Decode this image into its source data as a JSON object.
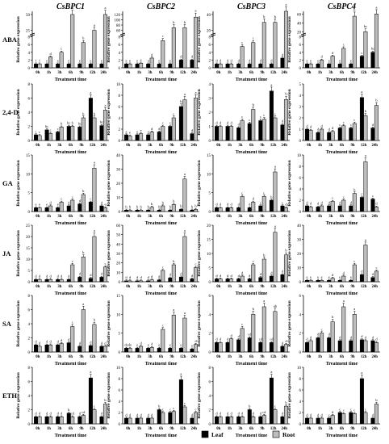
{
  "genes": [
    "CsBPC1",
    "CsBPC2",
    "CsBPC3",
    "CsBPC4"
  ],
  "treatments": [
    "ABA",
    "2,4-D",
    "GA",
    "JA",
    "SA",
    "ETH"
  ],
  "ylabel": "Relative gene expression",
  "xlabel": "Treatment time",
  "timepoints": [
    "0h",
    "1h",
    "3h",
    "6h",
    "9h",
    "12h",
    "24h"
  ],
  "legend": {
    "leaf": "Leaf",
    "root": "Root"
  },
  "colors": {
    "leaf": "#000000",
    "root": "#bdbdbd"
  },
  "chart_data": {
    "type": "bar",
    "layout": "grid of panels: rows = treatments, columns = genes",
    "categories": [
      "0h",
      "1h",
      "3h",
      "6h",
      "9h",
      "12h",
      "24h"
    ],
    "series_names": [
      "Leaf",
      "Root"
    ],
    "legend_position": "bottom",
    "panels": [
      {
        "treatment": "ABA",
        "gene": "CsBPC1",
        "ylim": [
          0,
          8
        ],
        "ticks": [
          0,
          2,
          4,
          6,
          8
        ],
        "break_ticks": [
          25,
          50
        ],
        "leaf": [
          1,
          1,
          1,
          1,
          1,
          1,
          1
        ],
        "root": [
          1,
          2.8,
          4,
          50,
          6.5,
          25,
          50
        ],
        "leaf_letters": [
          "f",
          "e",
          "e",
          "e",
          "e",
          "e",
          "e"
        ],
        "root_letters": [
          "f",
          "d",
          "c",
          "a",
          "b",
          "a",
          "a"
        ]
      },
      {
        "treatment": "ABA",
        "gene": "CsBPC2",
        "ylim": [
          0,
          8
        ],
        "ticks": [
          0,
          2,
          4,
          6,
          8
        ],
        "break_ticks": [
          60,
          80,
          100,
          120
        ],
        "leaf": [
          1,
          1,
          1,
          1,
          1,
          2,
          2
        ],
        "root": [
          1,
          1.2,
          2.5,
          7,
          70,
          70,
          110
        ],
        "leaf_letters": [
          "e",
          "e",
          "e",
          "e",
          "e",
          "d",
          "d"
        ],
        "root_letters": [
          "e",
          "e",
          "d",
          "c",
          "b",
          "b",
          "a"
        ]
      },
      {
        "treatment": "ABA",
        "gene": "CsBPC3",
        "ylim": [
          0,
          8
        ],
        "ticks": [
          0,
          2,
          4,
          6,
          8
        ],
        "break_ticks": [
          20,
          40
        ],
        "leaf": [
          1,
          1,
          1,
          1,
          1,
          1,
          2.5
        ],
        "root": [
          1,
          1,
          5.5,
          6.5,
          30,
          30,
          45
        ],
        "leaf_letters": [
          "d",
          "d",
          "d",
          "d",
          "d",
          "d",
          "d"
        ],
        "root_letters": [
          "d",
          "d",
          "c",
          "c",
          "b",
          "b",
          "a"
        ]
      },
      {
        "treatment": "ABA",
        "gene": "CsBPC4",
        "ylim": [
          0,
          8
        ],
        "ticks": [
          0,
          2,
          4,
          6,
          8
        ],
        "break_ticks": [
          20,
          40,
          60
        ],
        "leaf": [
          1,
          1,
          1,
          1,
          1,
          3,
          4
        ],
        "root": [
          1,
          2,
          3,
          5,
          55,
          20,
          60
        ],
        "leaf_letters": [
          "e",
          "e",
          "e",
          "e",
          "e",
          "c",
          "bc"
        ],
        "root_letters": [
          "e",
          "d",
          "d",
          "c",
          "b",
          "bc",
          "a"
        ]
      },
      {
        "treatment": "2,4-D",
        "gene": "CsBPC1",
        "ylim": [
          0,
          8
        ],
        "ticks": [
          0,
          2,
          4,
          6,
          8
        ],
        "leaf": [
          0.8,
          1.5,
          1.2,
          2,
          1.9,
          6,
          2.1
        ],
        "root": [
          0.7,
          1,
          1.9,
          2,
          3.2,
          3.2,
          4.3
        ],
        "leaf_letters": [
          "c",
          "bc",
          "c",
          "bc",
          "bc",
          "a",
          "bc"
        ],
        "root_letters": [
          "c",
          "c",
          "b",
          "b",
          "b",
          "b",
          "a"
        ]
      },
      {
        "treatment": "2,4-D",
        "gene": "CsBPC2",
        "ylim": [
          0,
          10
        ],
        "ticks": [
          0,
          2,
          4,
          6,
          8,
          10
        ],
        "leaf": [
          1,
          1,
          1,
          1.5,
          2.5,
          6,
          1.2
        ],
        "root": [
          0.8,
          1.2,
          1.5,
          2.5,
          4,
          7.2,
          7.5
        ],
        "leaf_letters": [
          "e",
          "e",
          "e",
          "d",
          "c",
          "b",
          "d"
        ],
        "root_letters": [
          "e",
          "e",
          "d",
          "c",
          "c",
          "a",
          "a"
        ]
      },
      {
        "treatment": "2,4-D",
        "gene": "CsBPC3",
        "ylim": [
          0,
          4
        ],
        "ticks": [
          0,
          1,
          2,
          3,
          4
        ],
        "leaf": [
          1,
          1,
          0.9,
          1.2,
          1.4,
          3.5,
          1.1
        ],
        "root": [
          1,
          1,
          1.4,
          2.2,
          1.5,
          1.6,
          2.9
        ],
        "leaf_letters": [
          "d",
          "d",
          "d",
          "c",
          "c",
          "a",
          "d"
        ],
        "root_letters": [
          "d",
          "d",
          "c",
          "b",
          "c",
          "c",
          "b"
        ]
      },
      {
        "treatment": "2,4-D",
        "gene": "CsBPC4",
        "ylim": [
          0,
          5
        ],
        "ticks": [
          0,
          1,
          2,
          3,
          4,
          5
        ],
        "leaf": [
          1,
          0.7,
          0.7,
          1.1,
          1.1,
          3.8,
          1.1
        ],
        "root": [
          0.9,
          1,
          0.8,
          1.3,
          1.5,
          2.2,
          3.1
        ],
        "leaf_letters": [
          "d",
          "d",
          "d",
          "c",
          "c",
          "a",
          "d"
        ],
        "root_letters": [
          "d",
          "d",
          "d",
          "c",
          "c",
          "b",
          "b"
        ]
      },
      {
        "treatment": "GA",
        "gene": "CsBPC1",
        "ylim": [
          0,
          15
        ],
        "ticks": [
          0,
          5,
          10,
          15
        ],
        "leaf": [
          1,
          1,
          1,
          1.5,
          2,
          2.5,
          1.5
        ],
        "root": [
          1,
          1.5,
          2.5,
          3,
          4.5,
          11.5,
          1
        ],
        "leaf_letters": [
          "e",
          "e",
          "e",
          "d",
          "d",
          "c",
          "d"
        ],
        "root_letters": [
          "e",
          "d",
          "c",
          "c",
          "b",
          "a",
          "e"
        ]
      },
      {
        "treatment": "GA",
        "gene": "CsBPC2",
        "ylim": [
          0,
          40
        ],
        "ticks": [
          0,
          10,
          20,
          30,
          40
        ],
        "leaf": [
          1,
          1,
          1,
          1,
          1,
          1.5,
          1
        ],
        "root": [
          1,
          1,
          3,
          4,
          5,
          23,
          1.5
        ],
        "leaf_letters": [
          "b",
          "b",
          "b",
          "b",
          "b",
          "b",
          "b"
        ],
        "root_letters": [
          "b",
          "b",
          "b",
          "b",
          "b",
          "a",
          "b"
        ]
      },
      {
        "treatment": "GA",
        "gene": "CsBPC3",
        "ylim": [
          0,
          15
        ],
        "ticks": [
          0,
          5,
          10,
          15
        ],
        "leaf": [
          1,
          1,
          1,
          1,
          1.5,
          3,
          1.5
        ],
        "root": [
          1,
          1,
          4,
          2.5,
          4,
          10.5,
          1
        ],
        "leaf_letters": [
          "d",
          "d",
          "d",
          "d",
          "c",
          "b",
          "c"
        ],
        "root_letters": [
          "d",
          "d",
          "c",
          "d",
          "c",
          "a",
          "d"
        ]
      },
      {
        "treatment": "GA",
        "gene": "CsBPC4",
        "ylim": [
          0,
          10
        ],
        "ticks": [
          0,
          2,
          4,
          6,
          8,
          10
        ],
        "leaf": [
          1,
          0.8,
          1,
          1,
          1,
          2.5,
          2.2
        ],
        "root": [
          0.8,
          1,
          1.8,
          2,
          3.2,
          8.8,
          0.8
        ],
        "leaf_letters": [
          "d",
          "d",
          "d",
          "d",
          "d",
          "c",
          "c"
        ],
        "root_letters": [
          "d",
          "d",
          "c",
          "c",
          "b",
          "a",
          "d"
        ]
      },
      {
        "treatment": "JA",
        "gene": "CsBPC1",
        "ylim": [
          0,
          25
        ],
        "ticks": [
          0,
          5,
          10,
          15,
          20,
          25
        ],
        "leaf": [
          1,
          1,
          1,
          1,
          2,
          1.5,
          2
        ],
        "root": [
          1,
          1,
          1,
          7.5,
          11,
          20,
          6.5
        ],
        "leaf_letters": [
          "d",
          "d",
          "d",
          "d",
          "d",
          "d",
          "d"
        ],
        "root_letters": [
          "d",
          "d",
          "d",
          "c",
          "b",
          "a",
          "c"
        ]
      },
      {
        "treatment": "JA",
        "gene": "CsBPC2",
        "ylim": [
          0,
          60
        ],
        "ticks": [
          0,
          10,
          20,
          30,
          40,
          50,
          60
        ],
        "leaf": [
          1,
          1,
          1,
          2,
          4,
          5,
          3
        ],
        "root": [
          1,
          1,
          2,
          12,
          18,
          48,
          15
        ],
        "leaf_letters": [
          "d",
          "d",
          "d",
          "d",
          "d",
          "d",
          "d"
        ],
        "root_letters": [
          "d",
          "d",
          "d",
          "c",
          "b",
          "a",
          "c"
        ]
      },
      {
        "treatment": "JA",
        "gene": "CsBPC3",
        "ylim": [
          0,
          20
        ],
        "ticks": [
          0,
          5,
          10,
          15,
          20
        ],
        "leaf": [
          1,
          1,
          1,
          1,
          1.5,
          2,
          2.5
        ],
        "root": [
          1,
          1,
          2,
          6,
          8,
          17.5,
          9.5
        ],
        "leaf_letters": [
          "d",
          "d",
          "d",
          "d",
          "d",
          "d",
          "d"
        ],
        "root_letters": [
          "d",
          "d",
          "d",
          "c",
          "b",
          "a",
          "b"
        ]
      },
      {
        "treatment": "JA",
        "gene": "CsBPC4",
        "ylim": [
          0,
          40
        ],
        "ticks": [
          0,
          10,
          20,
          30,
          40
        ],
        "leaf": [
          1,
          1,
          1,
          1,
          1,
          5,
          3
        ],
        "root": [
          1,
          1,
          2.5,
          4,
          12,
          26,
          7.5
        ],
        "leaf_letters": [
          "e",
          "e",
          "e",
          "e",
          "e",
          "d",
          "d"
        ],
        "root_letters": [
          "e",
          "e",
          "d",
          "d",
          "c",
          "a",
          "c"
        ]
      },
      {
        "treatment": "SA",
        "gene": "CsBPC1",
        "ylim": [
          0,
          8
        ],
        "ticks": [
          0,
          2,
          4,
          6,
          8
        ],
        "leaf": [
          1,
          1,
          1,
          1.3,
          0.8,
          0.9,
          0.8
        ],
        "root": [
          0.8,
          1,
          1.2,
          3.6,
          6,
          3.9,
          0.8
        ],
        "leaf_letters": [
          "d",
          "d",
          "d",
          "d",
          "d",
          "d",
          "d"
        ],
        "root_letters": [
          "d",
          "d",
          "d",
          "c",
          "a",
          "b",
          "d"
        ]
      },
      {
        "treatment": "SA",
        "gene": "CsBPC2",
        "ylim": [
          0,
          15
        ],
        "ticks": [
          0,
          5,
          10,
          15
        ],
        "leaf": [
          1,
          1,
          1,
          1,
          1,
          1,
          0.8
        ],
        "root": [
          1,
          1.5,
          1.2,
          6,
          9.8,
          9,
          2
        ],
        "leaf_letters": [
          "de",
          "e",
          "e",
          "e",
          "e",
          "e",
          "e"
        ],
        "root_letters": [
          "de",
          "d",
          "d",
          "c",
          "a",
          "a",
          "d"
        ]
      },
      {
        "treatment": "SA",
        "gene": "CsBPC3",
        "ylim": [
          0,
          6
        ],
        "ticks": [
          0,
          2,
          4,
          6
        ],
        "leaf": [
          1,
          1,
          1.3,
          1.5,
          1,
          1,
          0.6
        ],
        "root": [
          1,
          1.4,
          2.5,
          4,
          4.8,
          4.3,
          0.8
        ],
        "leaf_letters": [
          "d",
          "d",
          "d",
          "cd",
          "cd",
          "cd",
          "d"
        ],
        "root_letters": [
          "d",
          "d",
          "c",
          "b",
          "a",
          "ab",
          "d"
        ]
      },
      {
        "treatment": "SA",
        "gene": "CsBPC4",
        "ylim": [
          0,
          6
        ],
        "ticks": [
          0,
          2,
          4,
          6
        ],
        "leaf": [
          1,
          1.5,
          1.5,
          1.2,
          1.2,
          1.3,
          1.2
        ],
        "root": [
          1.2,
          2,
          3.2,
          4.8,
          4,
          1.2,
          1
        ],
        "leaf_letters": [
          "d",
          "d",
          "d",
          "d",
          "d",
          "d",
          "d"
        ],
        "root_letters": [
          "d",
          "c",
          "b",
          "a",
          "a",
          "d",
          "d"
        ]
      },
      {
        "treatment": "ETH",
        "gene": "CsBPC1",
        "ylim": [
          0,
          8
        ],
        "ticks": [
          0,
          2,
          4,
          6,
          8
        ],
        "leaf": [
          1,
          1,
          1,
          1.5,
          1,
          6.5,
          1
        ],
        "root": [
          1,
          1,
          1,
          1,
          1.2,
          2,
          2.8
        ],
        "leaf_letters": [
          "d",
          "d",
          "d",
          "b",
          "d",
          "a",
          "d"
        ],
        "root_letters": [
          "d",
          "d",
          "d",
          "cd",
          "cd",
          "c",
          "b"
        ]
      },
      {
        "treatment": "ETH",
        "gene": "CsBPC2",
        "ylim": [
          0,
          10
        ],
        "ticks": [
          0,
          2,
          4,
          6,
          8,
          10
        ],
        "leaf": [
          1,
          1,
          1,
          2.5,
          2,
          7.8,
          1
        ],
        "root": [
          1,
          1,
          1,
          2,
          2.2,
          3,
          2
        ],
        "leaf_letters": [
          "d",
          "d",
          "d",
          "b",
          "c",
          "a",
          "d"
        ],
        "root_letters": [
          "d",
          "d",
          "d",
          "c",
          "c",
          "c",
          "c"
        ]
      },
      {
        "treatment": "ETH",
        "gene": "CsBPC3",
        "ylim": [
          0,
          8
        ],
        "ticks": [
          0,
          2,
          4,
          6,
          8
        ],
        "leaf": [
          1,
          1,
          1,
          2,
          1,
          6.5,
          1
        ],
        "root": [
          1,
          1,
          1,
          1,
          1.2,
          2,
          2.5
        ],
        "leaf_letters": [
          "d",
          "d",
          "d",
          "b",
          "d",
          "a",
          "d"
        ],
        "root_letters": [
          "d",
          "d",
          "d",
          "d",
          "cd",
          "c",
          "b"
        ]
      },
      {
        "treatment": "ETH",
        "gene": "CsBPC4",
        "ylim": [
          0,
          10
        ],
        "ticks": [
          0,
          2,
          4,
          6,
          8,
          10
        ],
        "leaf": [
          1,
          1,
          1,
          2,
          2,
          8,
          1
        ],
        "root": [
          1,
          1,
          1.5,
          1.8,
          1.8,
          2,
          3.5
        ],
        "leaf_letters": [
          "d",
          "d",
          "c",
          "c",
          "c",
          "a",
          "d"
        ],
        "root_letters": [
          "d",
          "d",
          "d",
          "c",
          "c",
          "c",
          "b"
        ]
      }
    ]
  }
}
